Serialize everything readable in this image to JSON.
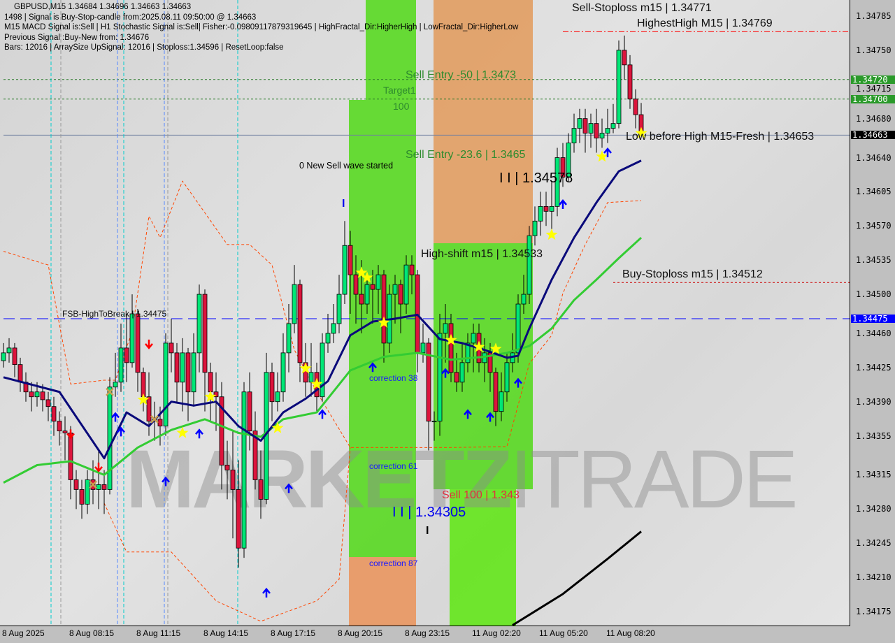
{
  "header": {
    "line0": "GBPUSD,M15  1.34684 1.34696 1.34663 1.34663",
    "line1": "1498 | Signal is Buy-Stop-candle from:2025.08.11 09:50:00 @ 1.34663",
    "line2": "M15 MACD Signal is:Sell | H1 Stochastic Signal is:Sell| Fisher:-0.09809117879319645 | HighFractal_Dir:HigherHigh | LowFractal_Dir:HigherLow",
    "line3": "Previous Signal :Buy-New from: 1.34676",
    "line4": "Bars: 12016 | ArraySize UpSignal: 12016 | Stoploss:1.34596 | ResetLoop:false"
  },
  "annotations": {
    "sell_stoploss": "Sell-Stoploss m15 | 1.34771",
    "highest_high": "HighestHigh   M15 | 1.34769",
    "sell_entry_50": "Sell Entry -50 | 1.3473",
    "target1": "Target1",
    "target_100": "100",
    "sell_entry_236": "Sell Entry -23.6 | 1.3465",
    "new_sell_wave": "0 New Sell wave started",
    "level_34578": "I I | 1.34578",
    "low_before_high": "Low before High    M15-Fresh | 1.34653",
    "high_shift": "High-shift m15 | 1.34533",
    "buy_stoploss": "Buy-Stoploss m15 | 1.34512",
    "fsb_high": "FSB-HighToBreak | 1.34475",
    "correction38": "correction 38",
    "correction61": "correction 61",
    "correction87": "correction 87",
    "sell100": "Sell 100 | 1.343",
    "level_34305": "I I | 1.34305",
    "mark_i_blue": "I",
    "mark_i_black": "I"
  },
  "watermark": "MARKETZITRADE",
  "colors": {
    "bull": "#00e676",
    "bear": "#dc143c",
    "ma_fast": "#0a0a7a",
    "ma_slow": "#33cc33",
    "envelope": "#ff4500",
    "trend": "#000000",
    "star": "#ffff00",
    "arrow_up": "#0000ff",
    "arrow_down": "#ff0000",
    "cross": "#c8a050"
  },
  "chart_data": {
    "type": "candlestick",
    "symbol": "GBPUSD",
    "timeframe": "M15",
    "ylim": [
      1.3416,
      1.348
    ],
    "y_ticks": [
      "1.34785",
      "1.34750",
      "1.34715",
      "1.34680",
      "1.34640",
      "1.34605",
      "1.34570",
      "1.34535",
      "1.34500",
      "1.34460",
      "1.34425",
      "1.34390",
      "1.34355",
      "1.34315",
      "1.34280",
      "1.34245",
      "1.34210",
      "1.34175"
    ],
    "price_tags": [
      {
        "value": "1.34720",
        "color": "#2a9a2a"
      },
      {
        "value": "1.34700",
        "color": "#2a9a2a"
      },
      {
        "value": "1.34663",
        "color": "#000000"
      },
      {
        "value": "1.34475",
        "color": "#0000ff"
      }
    ],
    "x_ticks": [
      {
        "index": 0,
        "label": "8 Aug 2025"
      },
      {
        "index": 12,
        "label": "8 Aug 08:15"
      },
      {
        "index": 24,
        "label": "8 Aug 11:15"
      },
      {
        "index": 36,
        "label": "8 Aug 14:15"
      },
      {
        "index": 48,
        "label": "8 Aug 17:15"
      },
      {
        "index": 60,
        "label": "8 Aug 20:15"
      },
      {
        "index": 72,
        "label": "8 Aug 23:15"
      },
      {
        "index": 84,
        "label": "11 Aug 02:20"
      },
      {
        "index": 96,
        "label": "11 Aug 05:20"
      },
      {
        "index": 108,
        "label": "11 Aug 08:20"
      }
    ],
    "ohlc": [
      [
        1.34432,
        1.3445,
        1.34425,
        1.3444
      ],
      [
        1.3444,
        1.34455,
        1.3443,
        1.34445
      ],
      [
        1.34445,
        1.3445,
        1.34415,
        1.34428
      ],
      [
        1.34428,
        1.34435,
        1.344,
        1.3441
      ],
      [
        1.3441,
        1.3442,
        1.3439,
        1.344
      ],
      [
        1.344,
        1.3441,
        1.3438,
        1.34395
      ],
      [
        1.34395,
        1.3441,
        1.34385,
        1.344
      ],
      [
        1.344,
        1.34408,
        1.3438,
        1.34392
      ],
      [
        1.34392,
        1.344,
        1.3437,
        1.34385
      ],
      [
        1.34385,
        1.34395,
        1.34355,
        1.3437
      ],
      [
        1.3437,
        1.3438,
        1.34345,
        1.3436
      ],
      [
        1.3436,
        1.34375,
        1.3433,
        1.34358
      ],
      [
        1.34358,
        1.34365,
        1.3429,
        1.3431
      ],
      [
        1.3431,
        1.3432,
        1.3428,
        1.343
      ],
      [
        1.343,
        1.3431,
        1.3427,
        1.34285
      ],
      [
        1.34285,
        1.3432,
        1.34275,
        1.3431
      ],
      [
        1.3431,
        1.3433,
        1.34285,
        1.343
      ],
      [
        1.343,
        1.3434,
        1.3428,
        1.34305
      ],
      [
        1.34305,
        1.3432,
        1.34275,
        1.343
      ],
      [
        1.343,
        1.34415,
        1.34295,
        1.34405
      ],
      [
        1.34405,
        1.3444,
        1.34395,
        1.3441
      ],
      [
        1.3441,
        1.3447,
        1.344,
        1.34445
      ],
      [
        1.34445,
        1.3448,
        1.3441,
        1.3443
      ],
      [
        1.3443,
        1.345,
        1.34425,
        1.3448
      ],
      [
        1.3448,
        1.34485,
        1.344,
        1.3442
      ],
      [
        1.3442,
        1.34425,
        1.3438,
        1.34395
      ],
      [
        1.34395,
        1.3442,
        1.34355,
        1.3437
      ],
      [
        1.3437,
        1.3439,
        1.3435,
        1.34372
      ],
      [
        1.34372,
        1.34385,
        1.34345,
        1.34365
      ],
      [
        1.34365,
        1.3446,
        1.34355,
        1.3445
      ],
      [
        1.3445,
        1.34475,
        1.3442,
        1.3444
      ],
      [
        1.3444,
        1.3445,
        1.3439,
        1.3441
      ],
      [
        1.3441,
        1.34455,
        1.3438,
        1.3444
      ],
      [
        1.3444,
        1.34445,
        1.3437,
        1.344
      ],
      [
        1.344,
        1.3446,
        1.34385,
        1.3444
      ],
      [
        1.3444,
        1.3451,
        1.3442,
        1.345
      ],
      [
        1.345,
        1.34505,
        1.3438,
        1.3442
      ],
      [
        1.3442,
        1.3443,
        1.3437,
        1.344
      ],
      [
        1.344,
        1.3442,
        1.3436,
        1.34395
      ],
      [
        1.34395,
        1.3441,
        1.343,
        1.34325
      ],
      [
        1.34325,
        1.3435,
        1.3429,
        1.3432
      ],
      [
        1.3432,
        1.3436,
        1.3425,
        1.343
      ],
      [
        1.343,
        1.3433,
        1.3422,
        1.3424
      ],
      [
        1.3424,
        1.3441,
        1.3423,
        1.344
      ],
      [
        1.344,
        1.3442,
        1.3434,
        1.3436
      ],
      [
        1.3436,
        1.3438,
        1.343,
        1.3431
      ],
      [
        1.3431,
        1.3434,
        1.3427,
        1.3429
      ],
      [
        1.3429,
        1.3444,
        1.34285,
        1.3442
      ],
      [
        1.3442,
        1.3443,
        1.3437,
        1.3439
      ],
      [
        1.3439,
        1.3442,
        1.3438,
        1.344
      ],
      [
        1.344,
        1.3446,
        1.3439,
        1.3444
      ],
      [
        1.3444,
        1.3449,
        1.3442,
        1.3447
      ],
      [
        1.3447,
        1.3453,
        1.3446,
        1.3451
      ],
      [
        1.3451,
        1.34515,
        1.3441,
        1.3443
      ],
      [
        1.3443,
        1.3445,
        1.34395,
        1.3441
      ],
      [
        1.3441,
        1.3445,
        1.34395,
        1.3442
      ],
      [
        1.3442,
        1.3443,
        1.3438,
        1.34395
      ],
      [
        1.34395,
        1.3446,
        1.3439,
        1.3445
      ],
      [
        1.3445,
        1.3448,
        1.3444,
        1.3446
      ],
      [
        1.3446,
        1.3449,
        1.3445,
        1.3447
      ],
      [
        1.3447,
        1.3452,
        1.3446,
        1.345
      ],
      [
        1.345,
        1.34575,
        1.3449,
        1.3455
      ],
      [
        1.3455,
        1.34565,
        1.3448,
        1.3452
      ],
      [
        1.3452,
        1.3454,
        1.3447,
        1.345
      ],
      [
        1.345,
        1.34535,
        1.3446,
        1.3449
      ],
      [
        1.3449,
        1.3452,
        1.3448,
        1.3451
      ],
      [
        1.3451,
        1.34525,
        1.3447,
        1.34505
      ],
      [
        1.34505,
        1.3453,
        1.3448,
        1.3452
      ],
      [
        1.3452,
        1.34525,
        1.3443,
        1.3445
      ],
      [
        1.3445,
        1.3451,
        1.3444,
        1.345
      ],
      [
        1.345,
        1.3452,
        1.3447,
        1.3451
      ],
      [
        1.3451,
        1.34515,
        1.3446,
        1.3449
      ],
      [
        1.3449,
        1.3454,
        1.3448,
        1.3453
      ],
      [
        1.3453,
        1.3454,
        1.345,
        1.3452
      ],
      [
        1.3452,
        1.34525,
        1.3442,
        1.3444
      ],
      [
        1.3444,
        1.3447,
        1.3443,
        1.3445
      ],
      [
        1.3445,
        1.34455,
        1.3434,
        1.3437
      ],
      [
        1.3437,
        1.3438,
        1.3435,
        1.3437
      ],
      [
        1.3437,
        1.3448,
        1.34355,
        1.3446
      ],
      [
        1.3446,
        1.3449,
        1.3443,
        1.3447
      ],
      [
        1.3447,
        1.3448,
        1.3441,
        1.3442
      ],
      [
        1.3442,
        1.3444,
        1.344,
        1.3441
      ],
      [
        1.3441,
        1.3445,
        1.344,
        1.3443
      ],
      [
        1.3443,
        1.3446,
        1.3442,
        1.3445
      ],
      [
        1.3445,
        1.3447,
        1.3442,
        1.3446
      ],
      [
        1.3446,
        1.3447,
        1.3442,
        1.3443
      ],
      [
        1.3443,
        1.34455,
        1.3441,
        1.3444
      ],
      [
        1.3444,
        1.3445,
        1.344,
        1.3442
      ],
      [
        1.3442,
        1.34425,
        1.34365,
        1.3438
      ],
      [
        1.3438,
        1.3442,
        1.3437,
        1.344
      ],
      [
        1.344,
        1.3444,
        1.3439,
        1.3443
      ],
      [
        1.3443,
        1.3446,
        1.3442,
        1.3444
      ],
      [
        1.3444,
        1.345,
        1.3443,
        1.3449
      ],
      [
        1.3449,
        1.3452,
        1.3448,
        1.345
      ],
      [
        1.345,
        1.3457,
        1.3449,
        1.3456
      ],
      [
        1.3456,
        1.3459,
        1.3455,
        1.34575
      ],
      [
        1.34575,
        1.34605,
        1.3456,
        1.3459
      ],
      [
        1.3459,
        1.34605,
        1.3457,
        1.34585
      ],
      [
        1.34585,
        1.34615,
        1.3456,
        1.3459
      ],
      [
        1.3459,
        1.3465,
        1.3458,
        1.3464
      ],
      [
        1.3464,
        1.34655,
        1.3461,
        1.3462
      ],
      [
        1.3462,
        1.34665,
        1.34615,
        1.34655
      ],
      [
        1.34655,
        1.34685,
        1.34645,
        1.3467
      ],
      [
        1.3467,
        1.3469,
        1.34655,
        1.3468
      ],
      [
        1.3468,
        1.3469,
        1.34645,
        1.34665
      ],
      [
        1.34665,
        1.34685,
        1.3465,
        1.34675
      ],
      [
        1.34675,
        1.3469,
        1.34645,
        1.3466
      ],
      [
        1.3466,
        1.3468,
        1.3465,
        1.34665
      ],
      [
        1.34665,
        1.3469,
        1.34655,
        1.3467
      ],
      [
        1.3467,
        1.34695,
        1.34665,
        1.34675
      ],
      [
        1.34675,
        1.3476,
        1.3467,
        1.3475
      ],
      [
        1.3475,
        1.34765,
        1.3472,
        1.34735
      ],
      [
        1.34735,
        1.34745,
        1.3469,
        1.347
      ],
      [
        1.347,
        1.3471,
        1.3467,
        1.34684
      ],
      [
        1.34684,
        1.34696,
        1.34663,
        1.34663
      ]
    ],
    "indicators": {
      "ma_fast": [
        [
          0,
          1.34415
        ],
        [
          10,
          1.344
        ],
        [
          18,
          1.34332
        ],
        [
          22,
          1.34379
        ],
        [
          26,
          1.34365
        ],
        [
          30,
          1.3439
        ],
        [
          34,
          1.34386
        ],
        [
          38,
          1.3439
        ],
        [
          42,
          1.34365
        ],
        [
          46,
          1.3435
        ],
        [
          50,
          1.34379
        ],
        [
          54,
          1.34393
        ],
        [
          58,
          1.34411
        ],
        [
          62,
          1.34458
        ],
        [
          66,
          1.34472
        ],
        [
          70,
          1.34475
        ],
        [
          74,
          1.34479
        ],
        [
          78,
          1.34454
        ],
        [
          82,
          1.3445
        ],
        [
          86,
          1.34443
        ],
        [
          90,
          1.34435
        ],
        [
          92,
          1.34437
        ],
        [
          94,
          1.34465
        ],
        [
          98,
          1.34515
        ],
        [
          102,
          1.34558
        ],
        [
          106,
          1.34594
        ],
        [
          110,
          1.34626
        ],
        [
          114,
          1.34637
        ]
      ],
      "ma_slow": [
        [
          0,
          1.34307
        ],
        [
          6,
          1.34325
        ],
        [
          12,
          1.34329
        ],
        [
          18,
          1.34315
        ],
        [
          24,
          1.34343
        ],
        [
          30,
          1.34361
        ],
        [
          36,
          1.34372
        ],
        [
          42,
          1.34358
        ],
        [
          46,
          1.34354
        ],
        [
          50,
          1.34372
        ],
        [
          56,
          1.34379
        ],
        [
          62,
          1.34422
        ],
        [
          68,
          1.34436
        ],
        [
          74,
          1.3444
        ],
        [
          80,
          1.34433
        ],
        [
          86,
          1.34436
        ],
        [
          90,
          1.3444
        ],
        [
          94,
          1.34447
        ],
        [
          98,
          1.34465
        ],
        [
          102,
          1.34494
        ],
        [
          106,
          1.34515
        ],
        [
          110,
          1.34537
        ],
        [
          114,
          1.34558
        ]
      ],
      "envelope_upper": [
        [
          0,
          1.34544
        ],
        [
          8,
          1.3453
        ],
        [
          12,
          1.34408
        ],
        [
          18,
          1.34412
        ],
        [
          20,
          1.34412
        ],
        [
          23,
          1.34462
        ],
        [
          26,
          1.3458
        ],
        [
          28,
          1.34558
        ],
        [
          32,
          1.34616
        ],
        [
          40,
          1.34551
        ],
        [
          44,
          1.34551
        ],
        [
          48,
          1.3453
        ],
        [
          52,
          1.34443
        ],
        [
          56,
          1.344
        ],
        [
          62,
          1.34343
        ],
        [
          70,
          1.34343
        ],
        [
          80,
          1.34343
        ],
        [
          90,
          1.34344
        ],
        [
          94,
          1.34429
        ],
        [
          98,
          1.34458
        ],
        [
          100,
          1.34501
        ],
        [
          104,
          1.34551
        ],
        [
          108,
          1.34594
        ],
        [
          114,
          1.34596
        ]
      ],
      "envelope_lower": [
        [
          18,
          1.34286
        ],
        [
          22,
          1.34236
        ],
        [
          30,
          1.34236
        ],
        [
          38,
          1.34186
        ],
        [
          46,
          1.34165
        ],
        [
          56,
          1.34186
        ],
        [
          60,
          1.34208
        ],
        [
          62,
          1.34343
        ]
      ],
      "trend_line": [
        [
          91,
          1.34161
        ],
        [
          100,
          1.34193
        ],
        [
          108,
          1.34229
        ],
        [
          114,
          1.34257
        ]
      ]
    },
    "levels": [
      {
        "price": 1.34769,
        "style": "dashdot",
        "color": "#ff0000",
        "from": 100
      },
      {
        "price": 1.3472,
        "style": "dotted",
        "color": "#2a7a2a",
        "from": 0
      },
      {
        "price": 1.347,
        "style": "dotted",
        "color": "#2a7a2a",
        "from": 0
      },
      {
        "price": 1.34663,
        "style": "solid",
        "color": "#7080a0",
        "from": 0
      },
      {
        "price": 1.34512,
        "style": "dotted",
        "color": "#cc0000",
        "from": 109
      },
      {
        "price": 1.34475,
        "style": "dashed",
        "color": "#0000ff",
        "from": 0
      }
    ],
    "markers": {
      "stars": [
        [
          25,
          1.34392
        ],
        [
          32,
          1.34358
        ],
        [
          37,
          1.34395
        ],
        [
          49,
          1.34363
        ],
        [
          54,
          1.34424
        ],
        [
          56,
          1.34408
        ],
        [
          64,
          1.34522
        ],
        [
          65,
          1.34517
        ],
        [
          68,
          1.34471
        ],
        [
          80,
          1.34453
        ],
        [
          85,
          1.34446
        ],
        [
          88,
          1.34444
        ],
        [
          98,
          1.34561
        ],
        [
          107,
          1.34641
        ],
        [
          114,
          1.34665
        ]
      ],
      "up_arrows": [
        [
          20,
          1.34378
        ],
        [
          21,
          1.34363
        ],
        [
          29,
          1.34312
        ],
        [
          35,
          1.34361
        ],
        [
          47,
          1.34198
        ],
        [
          51,
          1.34305
        ],
        [
          57,
          1.34381
        ],
        [
          66,
          1.34429
        ],
        [
          79,
          1.34423
        ],
        [
          83,
          1.34381
        ],
        [
          87,
          1.34378
        ],
        [
          92,
          1.34413
        ],
        [
          100,
          1.34596
        ],
        [
          108,
          1.34649
        ]
      ],
      "down_arrows": [
        [
          12,
          1.34353
        ],
        [
          17,
          1.34319
        ],
        [
          26,
          1.34445
        ]
      ],
      "crosses": [
        [
          19,
          1.344
        ],
        [
          16,
          1.34305
        ],
        [
          27,
          1.34372
        ]
      ]
    }
  }
}
